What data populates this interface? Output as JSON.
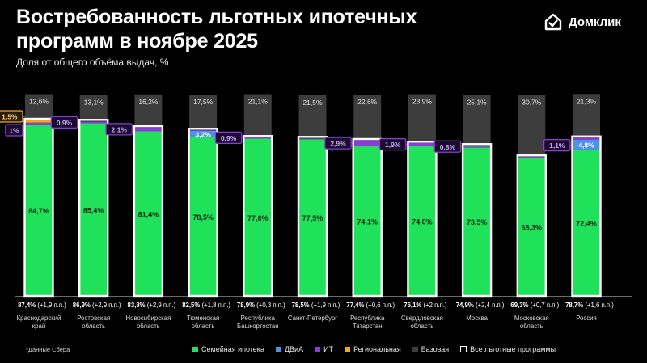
{
  "title": "Востребованность льготных ипотечных программ в ноябре 2025",
  "subtitle": "Доля от общего объёма выдач, %",
  "brand": {
    "name": "Домклик",
    "icon": "house-check-icon"
  },
  "footnote": "*Данные Сбера",
  "colors": {
    "family": "#1fe25a",
    "dvia": "#4c93e8",
    "it": "#8a3cd8",
    "regional": "#f2a922",
    "base": "#3d3d3d",
    "outline": "#ffffff",
    "background": "#000000"
  },
  "legend": [
    {
      "key": "family",
      "label": "Семейная ипотека"
    },
    {
      "key": "dvia",
      "label": "ДВиА"
    },
    {
      "key": "it",
      "label": "ИТ"
    },
    {
      "key": "regional",
      "label": "Региональная"
    },
    {
      "key": "base",
      "label": "Базовая"
    },
    {
      "key": "outline",
      "label": "Все льготные программы"
    }
  ],
  "chart_data": {
    "type": "bar",
    "stacked": true,
    "ylim": [
      0,
      100
    ],
    "categories": [
      [
        "Краснодарский",
        "край"
      ],
      [
        "Ростовская",
        "область"
      ],
      [
        "Новосибирская",
        "область"
      ],
      [
        "Тюменская",
        "область"
      ],
      [
        "Республика",
        "Башкортостан"
      ],
      [
        "Санкт-Петербург"
      ],
      [
        "Республика",
        "Татарстан"
      ],
      [
        "Свердловская",
        "область"
      ],
      [
        "Москва"
      ],
      [
        "Московская",
        "область"
      ],
      [
        "Россия"
      ]
    ],
    "series": [
      {
        "name": "Семейная ипотека",
        "key": "family",
        "values": [
          84.7,
          85.4,
          81.4,
          78.5,
          77.8,
          77.5,
          74.1,
          74.0,
          73.5,
          68.3,
          72.4
        ],
        "labels": [
          "84,7%",
          "85,4%",
          "81,4%",
          "78,5%",
          "77,8%",
          "77,5%",
          "74,1%",
          "74,0%",
          "73,5%",
          "68,3%",
          "72,4%"
        ]
      },
      {
        "name": "ДВиА",
        "key": "dvia",
        "values": [
          0,
          0,
          0,
          3.2,
          0,
          0,
          0,
          0,
          0,
          0,
          4.8
        ],
        "labels": [
          "",
          "",
          "",
          "3,2%",
          "",
          "",
          "",
          "",
          "",
          "",
          "4,8%"
        ]
      },
      {
        "name": "ИТ",
        "key": "it",
        "values": [
          1.0,
          0.9,
          2.1,
          0.4,
          0.9,
          0.3,
          2.9,
          1.9,
          0.8,
          0.5,
          1.1
        ],
        "labels": [
          "1%",
          "0,9%",
          "2,1%",
          "",
          "0,9%",
          "",
          "2,9%",
          "1,9%",
          "0,8%",
          "",
          "1,1%"
        ]
      },
      {
        "name": "Региональная",
        "key": "regional",
        "values": [
          1.5,
          0,
          0,
          0,
          0,
          0,
          0,
          0,
          0,
          0,
          0.3
        ],
        "labels": [
          "1,5%",
          "",
          "",
          "",
          "",
          "",
          "",
          "",
          "",
          "",
          ""
        ]
      },
      {
        "name": "Базовая",
        "key": "base",
        "values": [
          12.6,
          13.1,
          16.2,
          17.5,
          21.1,
          21.5,
          22.6,
          23.9,
          25.1,
          30.7,
          21.3
        ],
        "labels": [
          "12,6%",
          "13,1%",
          "16,2%",
          "17,5%",
          "21,1%",
          "21,5%",
          "22,6%",
          "23,9%",
          "25,1%",
          "30,7%",
          "21,3%"
        ]
      }
    ],
    "totals": {
      "name": "Все льготные программы",
      "values": [
        87.4,
        86.9,
        83.8,
        82.5,
        78.9,
        78.5,
        77.4,
        76.1,
        74.9,
        69.3,
        78.7
      ],
      "labels": [
        "87,4%",
        "86,9%",
        "83,8%",
        "82,5%",
        "78,9%",
        "78,5%",
        "77,4%",
        "76,1%",
        "74,9%",
        "69,3%",
        "78,7%"
      ],
      "changes": [
        "(+1,9 п.п.)",
        "(+2,9 п.п.)",
        "(+2,9 п.п.)",
        "(+1,8 п.п.)",
        "(+0,3 п.п.)",
        "(+1,9 п.п.)",
        "(+0,6 п.п.)",
        "(+2 п.п.)",
        "(+2,4 п.п.)",
        "(+0,7 п.п.)",
        "(+1,6 п.п.)"
      ]
    }
  }
}
